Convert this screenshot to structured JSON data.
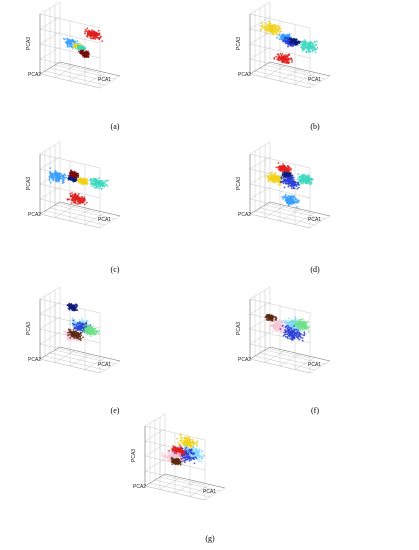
{
  "figure": {
    "background": "#ffffff",
    "cluster_colors": {
      "light-blue": "#3aa0ff",
      "blue": "#2b3fd6",
      "navy": "#0d1a7a",
      "cyan": "#7fd8ff",
      "teal": "#3cd8c0",
      "green": "#6fe08a",
      "yellow": "#f2d21a",
      "red": "#e0201e",
      "dark-red": "#7a0a0a",
      "pink": "#f7c4d6",
      "brown": "#5a2a10"
    }
  },
  "chart_data": [
    {
      "type": "scatter",
      "panel": "a",
      "caption": "(a)",
      "xlabel": "PCA1",
      "ylabel": "PCA2",
      "zlabel": "PCA3",
      "grid": true,
      "clusters": [
        {
          "color": "light-blue",
          "x": -6,
          "y": 2,
          "z": -1,
          "spread": 2
        },
        {
          "color": "cyan",
          "x": -2,
          "y": 0,
          "z": -1,
          "spread": 1.5
        },
        {
          "color": "yellow",
          "x": 0,
          "y": -2,
          "z": -1,
          "spread": 1.5
        },
        {
          "color": "teal",
          "x": 2,
          "y": -3,
          "z": -1,
          "spread": 1.2
        },
        {
          "color": "red",
          "x": 8,
          "y": 4,
          "z": 8,
          "spread": 2.5
        },
        {
          "color": "dark-red",
          "x": 6,
          "y": -8,
          "z": -3,
          "spread": 1.5
        }
      ]
    },
    {
      "type": "scatter",
      "panel": "b",
      "caption": "(b)",
      "xlabel": "PCA1",
      "ylabel": "PCA2",
      "zlabel": "PCA3",
      "grid": true,
      "clusters": [
        {
          "color": "yellow",
          "x": -12,
          "y": 0,
          "z": 8,
          "spread": 3
        },
        {
          "color": "light-blue",
          "x": -3,
          "y": 0,
          "z": 4,
          "spread": 2
        },
        {
          "color": "blue",
          "x": 0,
          "y": 0,
          "z": 2,
          "spread": 2
        },
        {
          "color": "navy",
          "x": 3,
          "y": 0,
          "z": 3,
          "spread": 1.5
        },
        {
          "color": "teal",
          "x": 12,
          "y": 0,
          "z": 2,
          "spread": 3
        },
        {
          "color": "red",
          "x": -4,
          "y": 0,
          "z": -10,
          "spread": 2.5
        }
      ]
    },
    {
      "type": "scatter",
      "panel": "c",
      "caption": "(c)",
      "xlabel": "PCA1",
      "ylabel": "PCA2",
      "zlabel": "PCA3",
      "grid": true,
      "clusters": [
        {
          "color": "light-blue",
          "x": -15,
          "y": 0,
          "z": 2,
          "spread": 3
        },
        {
          "color": "navy",
          "x": -5,
          "y": 0,
          "z": 3,
          "spread": 1.2
        },
        {
          "color": "dark-red",
          "x": -4,
          "y": 0,
          "z": 6,
          "spread": 1.5
        },
        {
          "color": "yellow",
          "x": 2,
          "y": 0,
          "z": 3,
          "spread": 1.5
        },
        {
          "color": "teal",
          "x": 12,
          "y": 0,
          "z": 4,
          "spread": 2.5
        },
        {
          "color": "red",
          "x": -2,
          "y": 0,
          "z": -10,
          "spread": 2.5
        }
      ]
    },
    {
      "type": "scatter",
      "panel": "d",
      "caption": "(d)",
      "xlabel": "PCA1",
      "ylabel": "PCA2",
      "zlabel": "PCA3",
      "grid": true,
      "clusters": [
        {
          "color": "red",
          "x": -4,
          "y": 0,
          "z": 10,
          "spread": 2
        },
        {
          "color": "navy",
          "x": -2,
          "y": 0,
          "z": 6,
          "spread": 1.5
        },
        {
          "color": "yellow",
          "x": -10,
          "y": 0,
          "z": 2,
          "spread": 2.5
        },
        {
          "color": "blue",
          "x": 0,
          "y": 0,
          "z": 2,
          "spread": 3
        },
        {
          "color": "teal",
          "x": 10,
          "y": 0,
          "z": 6,
          "spread": 2.5
        },
        {
          "color": "light-blue",
          "x": 0,
          "y": 0,
          "z": -10,
          "spread": 2.5
        }
      ]
    },
    {
      "type": "scatter",
      "panel": "e",
      "caption": "(e)",
      "xlabel": "PCA1",
      "ylabel": "PCA2",
      "zlabel": "PCA3",
      "grid": true,
      "clusters": [
        {
          "color": "navy",
          "x": -8,
          "y": 8,
          "z": 12,
          "spread": 1.5
        },
        {
          "color": "cyan",
          "x": 0,
          "y": 2,
          "z": 3,
          "spread": 3
        },
        {
          "color": "blue",
          "x": 2,
          "y": 0,
          "z": 2,
          "spread": 3
        },
        {
          "color": "green",
          "x": 8,
          "y": -2,
          "z": 2,
          "spread": 2.5
        },
        {
          "color": "pink",
          "x": -8,
          "y": 10,
          "z": -8,
          "spread": 2.5
        },
        {
          "color": "brown",
          "x": -6,
          "y": 8,
          "z": -6,
          "spread": 2
        }
      ]
    },
    {
      "type": "scatter",
      "panel": "f",
      "caption": "(f)",
      "xlabel": "PCA1",
      "ylabel": "PCA2",
      "zlabel": "PCA3",
      "grid": true,
      "clusters": [
        {
          "color": "brown",
          "x": -14,
          "y": 4,
          "z": 4,
          "spread": 1.5
        },
        {
          "color": "pink",
          "x": -8,
          "y": 2,
          "z": 0,
          "spread": 3
        },
        {
          "color": "cyan",
          "x": 2,
          "y": 0,
          "z": 4,
          "spread": 3
        },
        {
          "color": "green",
          "x": 8,
          "y": -2,
          "z": 6,
          "spread": 2.5
        },
        {
          "color": "blue",
          "x": 2,
          "y": 0,
          "z": -2,
          "spread": 3.5
        }
      ]
    },
    {
      "type": "scatter",
      "panel": "g",
      "caption": "(g)",
      "xlabel": "PCA1",
      "ylabel": "PCA2",
      "zlabel": "PCA3",
      "grid": true,
      "clusters": [
        {
          "color": "yellow",
          "x": 2,
          "y": 0,
          "z": 10,
          "spread": 3
        },
        {
          "color": "cyan",
          "x": 6,
          "y": 0,
          "z": 4,
          "spread": 3
        },
        {
          "color": "blue",
          "x": 0,
          "y": 0,
          "z": 2,
          "spread": 3.5
        },
        {
          "color": "red",
          "x": -6,
          "y": 4,
          "z": 2,
          "spread": 2
        },
        {
          "color": "pink",
          "x": -10,
          "y": 6,
          "z": -4,
          "spread": 3
        },
        {
          "color": "brown",
          "x": -8,
          "y": 6,
          "z": -6,
          "spread": 1.5
        }
      ]
    }
  ]
}
